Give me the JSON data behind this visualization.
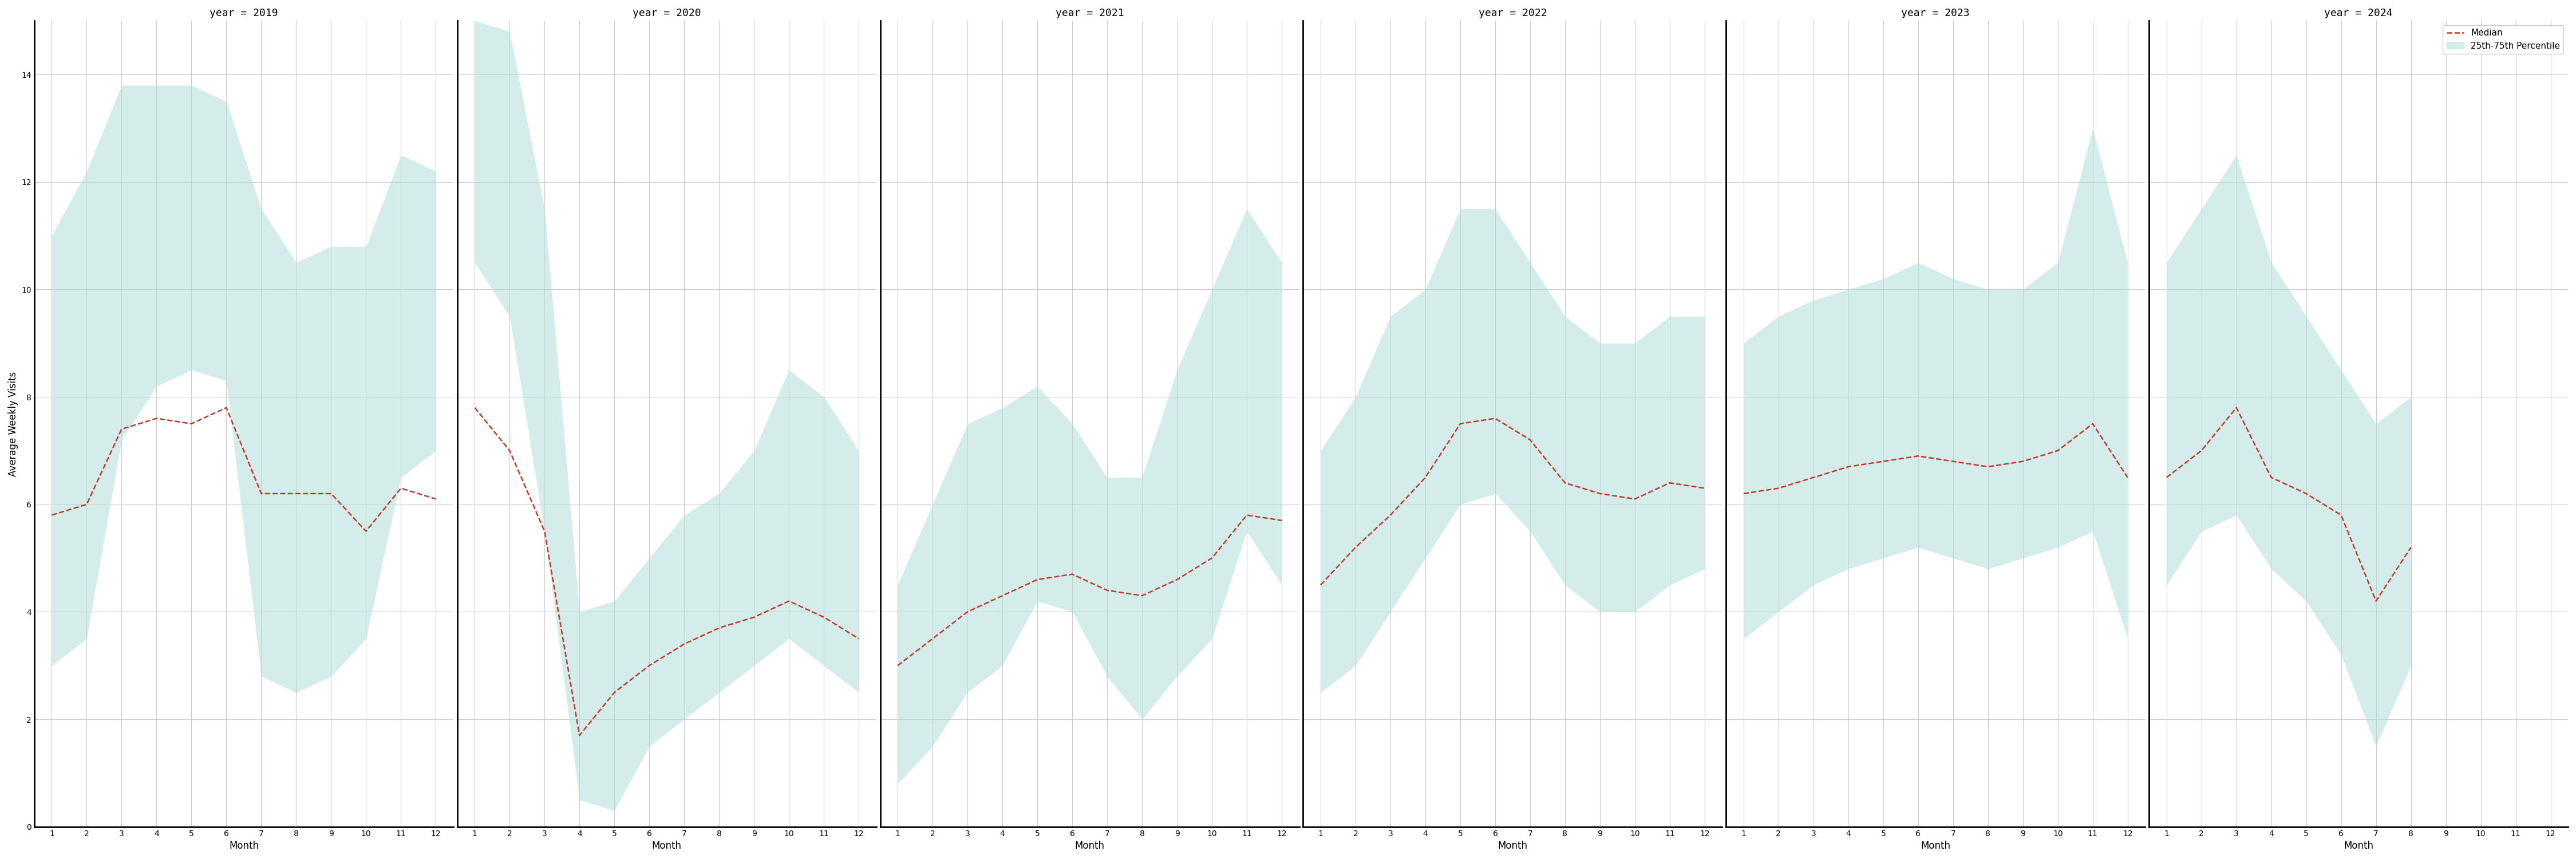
{
  "years": [
    2019,
    2020,
    2021,
    2022,
    2023,
    2024
  ],
  "months": [
    1,
    2,
    3,
    4,
    5,
    6,
    7,
    8,
    9,
    10,
    11,
    12
  ],
  "median": {
    "2019": [
      5.8,
      6.0,
      7.4,
      7.6,
      7.5,
      7.8,
      6.2,
      6.2,
      6.2,
      5.5,
      6.3,
      6.1
    ],
    "2020": [
      7.8,
      7.0,
      5.5,
      1.7,
      2.5,
      3.0,
      3.4,
      3.7,
      3.9,
      4.2,
      3.9,
      3.5
    ],
    "2021": [
      3.0,
      3.5,
      4.0,
      4.3,
      4.6,
      4.7,
      4.4,
      4.3,
      4.6,
      5.0,
      5.8,
      5.7
    ],
    "2022": [
      4.5,
      5.2,
      5.8,
      6.5,
      7.5,
      7.6,
      7.2,
      6.4,
      6.2,
      6.1,
      6.4,
      6.3
    ],
    "2023": [
      6.2,
      6.3,
      6.5,
      6.7,
      6.8,
      6.9,
      6.8,
      6.7,
      6.8,
      7.0,
      7.5,
      6.5
    ],
    "2024": [
      6.5,
      7.0,
      7.8,
      6.5,
      6.2,
      5.8,
      4.2,
      5.2,
      null,
      null,
      null,
      null
    ]
  },
  "p25": {
    "2019": [
      3.0,
      3.5,
      7.2,
      8.2,
      8.5,
      8.3,
      2.8,
      2.5,
      2.8,
      3.5,
      6.5,
      7.0
    ],
    "2020": [
      10.5,
      9.5,
      5.5,
      0.5,
      0.3,
      1.5,
      2.0,
      2.5,
      3.0,
      3.5,
      3.0,
      2.5
    ],
    "2021": [
      0.8,
      1.5,
      2.5,
      3.0,
      4.2,
      4.0,
      2.8,
      2.0,
      2.8,
      3.5,
      5.5,
      4.5
    ],
    "2022": [
      2.5,
      3.0,
      4.0,
      5.0,
      6.0,
      6.2,
      5.5,
      4.5,
      4.0,
      4.0,
      4.5,
      4.8
    ],
    "2023": [
      3.5,
      4.0,
      4.5,
      4.8,
      5.0,
      5.2,
      5.0,
      4.8,
      5.0,
      5.2,
      5.5,
      3.5
    ],
    "2024": [
      4.5,
      5.5,
      5.8,
      4.8,
      4.2,
      3.2,
      1.5,
      3.0,
      null,
      null,
      null,
      null
    ]
  },
  "p75": {
    "2019": [
      11.0,
      12.2,
      13.8,
      13.8,
      13.8,
      13.5,
      11.5,
      10.5,
      10.8,
      10.8,
      12.5,
      12.2
    ],
    "2020": [
      15.0,
      14.8,
      11.5,
      4.0,
      4.2,
      5.0,
      5.8,
      6.2,
      7.0,
      8.5,
      8.0,
      7.0
    ],
    "2021": [
      4.5,
      6.0,
      7.5,
      7.8,
      8.2,
      7.5,
      6.5,
      6.5,
      8.5,
      10.0,
      11.5,
      10.5
    ],
    "2022": [
      7.0,
      8.0,
      9.5,
      10.0,
      11.5,
      11.5,
      10.5,
      9.5,
      9.0,
      9.0,
      9.5,
      9.5
    ],
    "2023": [
      9.0,
      9.5,
      9.8,
      10.0,
      10.2,
      10.5,
      10.2,
      10.0,
      10.0,
      10.5,
      13.0,
      10.5
    ],
    "2024": [
      10.5,
      11.5,
      12.5,
      10.5,
      9.5,
      8.5,
      7.5,
      8.0,
      null,
      null,
      null,
      null
    ]
  },
  "fill_color": "#b2dfdb",
  "fill_alpha": 0.55,
  "line_color": "#c0392b",
  "line_style": "--",
  "line_width": 1.8,
  "ylabel": "Average Weekly Visits",
  "xlabel": "Month",
  "ylim": [
    0,
    15
  ],
  "yticks": [
    0,
    2,
    4,
    6,
    8,
    10,
    12,
    14
  ],
  "xticks": [
    1,
    2,
    3,
    4,
    5,
    6,
    7,
    8,
    9,
    10,
    11,
    12
  ],
  "title_prefix": "year = ",
  "legend_median_label": "Median",
  "legend_fill_label": "25th-75th Percentile",
  "bg_color": "#ffffff",
  "grid_color": "#cccccc",
  "spine_color": "#000000"
}
